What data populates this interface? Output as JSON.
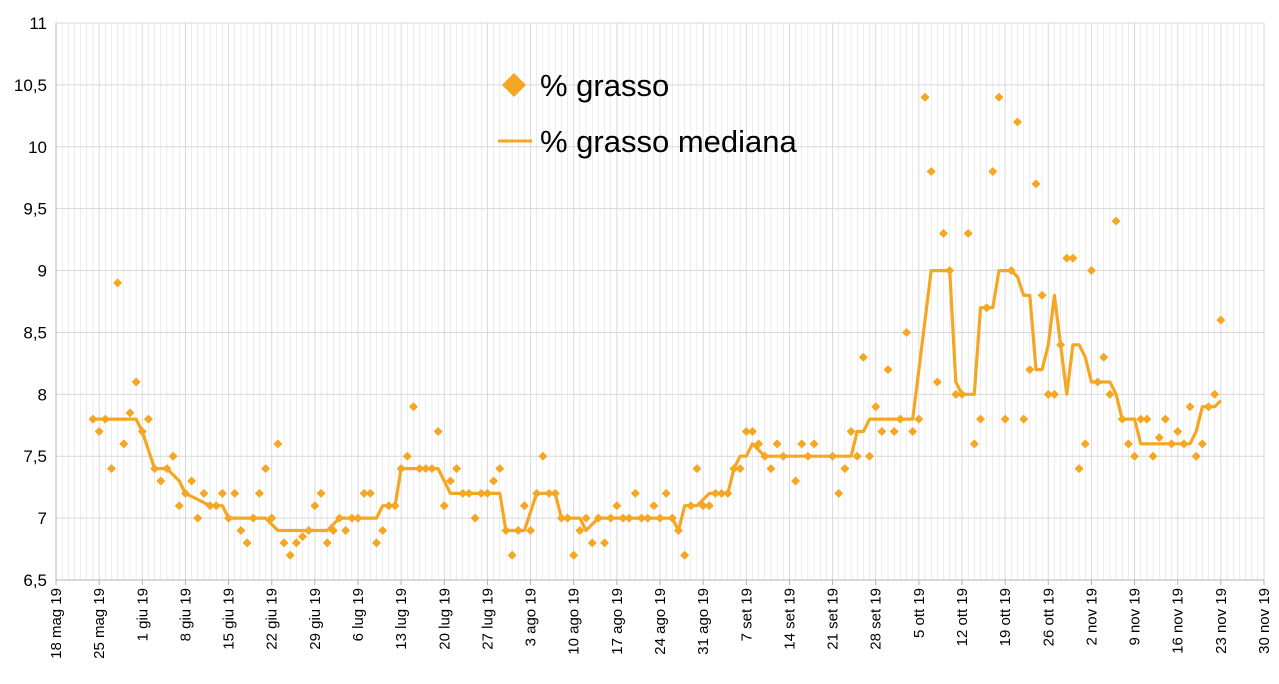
{
  "chart_data": {
    "type": "line",
    "title": "",
    "xlabel": "",
    "ylabel": "",
    "xlim": [
      "2019-05-18",
      "2019-11-30"
    ],
    "ylim": [
      6.5,
      11
    ],
    "grid": true,
    "legend": "top-center",
    "colors": {
      "series": "#F5A623",
      "grid": "#d9d9d9",
      "axis": "#b3b3b3"
    },
    "y_ticks": [
      "6,5",
      "7",
      "7,5",
      "8",
      "8,5",
      "9",
      "9,5",
      "10",
      "10,5",
      "11"
    ],
    "x_ticks": [
      "18 mag 19",
      "25 mag 19",
      "1 giu 19",
      "8 giu 19",
      "15 giu 19",
      "22 giu 19",
      "29 giu 19",
      "6 lug 19",
      "13 lug 19",
      "20 lug 19",
      "27 lug 19",
      "3 ago 19",
      "10 ago 19",
      "17 ago 19",
      "24 ago 19",
      "31 ago 19",
      "7 set 19",
      "14 set 19",
      "21 set 19",
      "28 set 19",
      "5 ott 19",
      "12 ott 19",
      "19 ott 19",
      "26 ott 19",
      "2 nov 19",
      "9 nov 19",
      "16 nov 19",
      "23 nov 19",
      "30 nov 19"
    ],
    "series": [
      {
        "name": "% grasso",
        "kind": "scatter",
        "marker": "diamond",
        "points": [
          [
            "2019-05-24",
            7.8
          ],
          [
            "2019-05-25",
            7.7
          ],
          [
            "2019-05-26",
            7.8
          ],
          [
            "2019-05-27",
            7.4
          ],
          [
            "2019-05-28",
            8.9
          ],
          [
            "2019-05-29",
            7.6
          ],
          [
            "2019-05-30",
            7.85
          ],
          [
            "2019-05-31",
            8.1
          ],
          [
            "2019-06-01",
            7.7
          ],
          [
            "2019-06-02",
            7.8
          ],
          [
            "2019-06-03",
            7.4
          ],
          [
            "2019-06-04",
            7.3
          ],
          [
            "2019-06-05",
            7.4
          ],
          [
            "2019-06-06",
            7.5
          ],
          [
            "2019-06-07",
            7.1
          ],
          [
            "2019-06-08",
            7.2
          ],
          [
            "2019-06-09",
            7.3
          ],
          [
            "2019-06-10",
            7.0
          ],
          [
            "2019-06-11",
            7.2
          ],
          [
            "2019-06-12",
            7.1
          ],
          [
            "2019-06-13",
            7.1
          ],
          [
            "2019-06-14",
            7.2
          ],
          [
            "2019-06-15",
            7.0
          ],
          [
            "2019-06-16",
            7.2
          ],
          [
            "2019-06-17",
            6.9
          ],
          [
            "2019-06-18",
            6.8
          ],
          [
            "2019-06-19",
            7.0
          ],
          [
            "2019-06-20",
            7.2
          ],
          [
            "2019-06-21",
            7.4
          ],
          [
            "2019-06-22",
            7.0
          ],
          [
            "2019-06-23",
            7.6
          ],
          [
            "2019-06-24",
            6.8
          ],
          [
            "2019-06-25",
            6.7
          ],
          [
            "2019-06-26",
            6.8
          ],
          [
            "2019-06-27",
            6.85
          ],
          [
            "2019-06-28",
            6.9
          ],
          [
            "2019-06-29",
            7.1
          ],
          [
            "2019-06-30",
            7.2
          ],
          [
            "2019-07-01",
            6.8
          ],
          [
            "2019-07-02",
            6.9
          ],
          [
            "2019-07-03",
            7.0
          ],
          [
            "2019-07-04",
            6.9
          ],
          [
            "2019-07-05",
            7.0
          ],
          [
            "2019-07-06",
            7.0
          ],
          [
            "2019-07-07",
            7.2
          ],
          [
            "2019-07-08",
            7.2
          ],
          [
            "2019-07-09",
            6.8
          ],
          [
            "2019-07-10",
            6.9
          ],
          [
            "2019-07-11",
            7.1
          ],
          [
            "2019-07-12",
            7.1
          ],
          [
            "2019-07-13",
            7.4
          ],
          [
            "2019-07-14",
            7.5
          ],
          [
            "2019-07-15",
            7.9
          ],
          [
            "2019-07-16",
            7.4
          ],
          [
            "2019-07-17",
            7.4
          ],
          [
            "2019-07-18",
            7.4
          ],
          [
            "2019-07-19",
            7.7
          ],
          [
            "2019-07-20",
            7.1
          ],
          [
            "2019-07-21",
            7.3
          ],
          [
            "2019-07-22",
            7.4
          ],
          [
            "2019-07-23",
            7.2
          ],
          [
            "2019-07-24",
            7.2
          ],
          [
            "2019-07-25",
            7.0
          ],
          [
            "2019-07-26",
            7.2
          ],
          [
            "2019-07-27",
            7.2
          ],
          [
            "2019-07-28",
            7.3
          ],
          [
            "2019-07-29",
            7.4
          ],
          [
            "2019-07-30",
            6.9
          ],
          [
            "2019-07-31",
            6.7
          ],
          [
            "2019-08-01",
            6.9
          ],
          [
            "2019-08-02",
            7.1
          ],
          [
            "2019-08-03",
            6.9
          ],
          [
            "2019-08-04",
            7.2
          ],
          [
            "2019-08-05",
            7.5
          ],
          [
            "2019-08-06",
            7.2
          ],
          [
            "2019-08-07",
            7.2
          ],
          [
            "2019-08-08",
            7.0
          ],
          [
            "2019-08-09",
            7.0
          ],
          [
            "2019-08-10",
            6.7
          ],
          [
            "2019-08-11",
            6.9
          ],
          [
            "2019-08-12",
            7.0
          ],
          [
            "2019-08-13",
            6.8
          ],
          [
            "2019-08-14",
            7.0
          ],
          [
            "2019-08-15",
            6.8
          ],
          [
            "2019-08-16",
            7.0
          ],
          [
            "2019-08-17",
            7.1
          ],
          [
            "2019-08-18",
            7.0
          ],
          [
            "2019-08-19",
            7.0
          ],
          [
            "2019-08-20",
            7.2
          ],
          [
            "2019-08-21",
            7.0
          ],
          [
            "2019-08-22",
            7.0
          ],
          [
            "2019-08-23",
            7.1
          ],
          [
            "2019-08-24",
            7.0
          ],
          [
            "2019-08-25",
            7.2
          ],
          [
            "2019-08-26",
            7.0
          ],
          [
            "2019-08-27",
            6.9
          ],
          [
            "2019-08-28",
            6.7
          ],
          [
            "2019-08-29",
            7.1
          ],
          [
            "2019-08-30",
            7.4
          ],
          [
            "2019-08-31",
            7.1
          ],
          [
            "2019-09-01",
            7.1
          ],
          [
            "2019-09-02",
            7.2
          ],
          [
            "2019-09-03",
            7.2
          ],
          [
            "2019-09-04",
            7.2
          ],
          [
            "2019-09-05",
            7.4
          ],
          [
            "2019-09-06",
            7.4
          ],
          [
            "2019-09-07",
            7.7
          ],
          [
            "2019-09-08",
            7.7
          ],
          [
            "2019-09-09",
            7.6
          ],
          [
            "2019-09-10",
            7.5
          ],
          [
            "2019-09-11",
            7.4
          ],
          [
            "2019-09-12",
            7.6
          ],
          [
            "2019-09-13",
            7.5
          ],
          [
            "2019-09-15",
            7.3
          ],
          [
            "2019-09-16",
            7.6
          ],
          [
            "2019-09-17",
            7.5
          ],
          [
            "2019-09-18",
            7.6
          ],
          [
            "2019-09-21",
            7.5
          ],
          [
            "2019-09-22",
            7.2
          ],
          [
            "2019-09-23",
            7.4
          ],
          [
            "2019-09-24",
            7.7
          ],
          [
            "2019-09-25",
            7.5
          ],
          [
            "2019-09-26",
            8.3
          ],
          [
            "2019-09-27",
            7.5
          ],
          [
            "2019-09-28",
            7.9
          ],
          [
            "2019-09-29",
            7.7
          ],
          [
            "2019-09-30",
            8.2
          ],
          [
            "2019-10-01",
            7.7
          ],
          [
            "2019-10-02",
            7.8
          ],
          [
            "2019-10-03",
            8.5
          ],
          [
            "2019-10-04",
            7.7
          ],
          [
            "2019-10-05",
            7.8
          ],
          [
            "2019-10-06",
            10.4
          ],
          [
            "2019-10-07",
            9.8
          ],
          [
            "2019-10-08",
            8.1
          ],
          [
            "2019-10-09",
            9.3
          ],
          [
            "2019-10-10",
            9.0
          ],
          [
            "2019-10-11",
            8.0
          ],
          [
            "2019-10-12",
            8.0
          ],
          [
            "2019-10-13",
            9.3
          ],
          [
            "2019-10-14",
            7.6
          ],
          [
            "2019-10-15",
            7.8
          ],
          [
            "2019-10-16",
            8.7
          ],
          [
            "2019-10-17",
            9.8
          ],
          [
            "2019-10-18",
            10.4
          ],
          [
            "2019-10-19",
            7.8
          ],
          [
            "2019-10-20",
            9.0
          ],
          [
            "2019-10-21",
            10.2
          ],
          [
            "2019-10-22",
            7.8
          ],
          [
            "2019-10-23",
            8.2
          ],
          [
            "2019-10-24",
            9.7
          ],
          [
            "2019-10-25",
            8.8
          ],
          [
            "2019-10-26",
            8.0
          ],
          [
            "2019-10-27",
            8.0
          ],
          [
            "2019-10-28",
            8.4
          ],
          [
            "2019-10-29",
            9.1
          ],
          [
            "2019-10-30",
            9.1
          ],
          [
            "2019-10-31",
            7.4
          ],
          [
            "2019-11-01",
            7.6
          ],
          [
            "2019-11-02",
            9.0
          ],
          [
            "2019-11-03",
            8.1
          ],
          [
            "2019-11-04",
            8.3
          ],
          [
            "2019-11-05",
            8.0
          ],
          [
            "2019-11-06",
            9.4
          ],
          [
            "2019-11-07",
            7.8
          ],
          [
            "2019-11-08",
            7.6
          ],
          [
            "2019-11-09",
            7.5
          ],
          [
            "2019-11-10",
            7.8
          ],
          [
            "2019-11-11",
            7.8
          ],
          [
            "2019-11-12",
            7.5
          ],
          [
            "2019-11-13",
            7.65
          ],
          [
            "2019-11-14",
            7.8
          ],
          [
            "2019-11-15",
            7.6
          ],
          [
            "2019-11-16",
            7.7
          ],
          [
            "2019-11-17",
            7.6
          ],
          [
            "2019-11-18",
            7.9
          ],
          [
            "2019-11-19",
            7.5
          ],
          [
            "2019-11-20",
            7.6
          ],
          [
            "2019-11-21",
            7.9
          ],
          [
            "2019-11-22",
            8.0
          ],
          [
            "2019-11-23",
            8.6
          ]
        ]
      },
      {
        "name": "% grasso mediana",
        "kind": "line",
        "points": [
          [
            "2019-05-24",
            7.8
          ],
          [
            "2019-05-31",
            7.8
          ],
          [
            "2019-06-01",
            7.7
          ],
          [
            "2019-06-03",
            7.4
          ],
          [
            "2019-06-05",
            7.4
          ],
          [
            "2019-06-07",
            7.3
          ],
          [
            "2019-06-08",
            7.2
          ],
          [
            "2019-06-10",
            7.15
          ],
          [
            "2019-06-12",
            7.1
          ],
          [
            "2019-06-14",
            7.1
          ],
          [
            "2019-06-15",
            7.0
          ],
          [
            "2019-06-19",
            7.0
          ],
          [
            "2019-06-21",
            7.0
          ],
          [
            "2019-06-23",
            6.9
          ],
          [
            "2019-06-28",
            6.9
          ],
          [
            "2019-06-30",
            6.9
          ],
          [
            "2019-07-01",
            6.9
          ],
          [
            "2019-07-03",
            7.0
          ],
          [
            "2019-07-09",
            7.0
          ],
          [
            "2019-07-10",
            7.1
          ],
          [
            "2019-07-12",
            7.1
          ],
          [
            "2019-07-13",
            7.4
          ],
          [
            "2019-07-19",
            7.4
          ],
          [
            "2019-07-20",
            7.3
          ],
          [
            "2019-07-21",
            7.2
          ],
          [
            "2019-07-25",
            7.2
          ],
          [
            "2019-07-27",
            7.2
          ],
          [
            "2019-07-29",
            7.2
          ],
          [
            "2019-07-30",
            6.9
          ],
          [
            "2019-08-02",
            6.9
          ],
          [
            "2019-08-04",
            7.2
          ],
          [
            "2019-08-07",
            7.2
          ],
          [
            "2019-08-08",
            7.0
          ],
          [
            "2019-08-11",
            7.0
          ],
          [
            "2019-08-12",
            6.9
          ],
          [
            "2019-08-14",
            7.0
          ],
          [
            "2019-08-26",
            7.0
          ],
          [
            "2019-08-27",
            6.9
          ],
          [
            "2019-08-28",
            7.1
          ],
          [
            "2019-08-30",
            7.1
          ],
          [
            "2019-09-01",
            7.2
          ],
          [
            "2019-09-04",
            7.2
          ],
          [
            "2019-09-05",
            7.4
          ],
          [
            "2019-09-06",
            7.5
          ],
          [
            "2019-09-07",
            7.5
          ],
          [
            "2019-09-08",
            7.6
          ],
          [
            "2019-09-10",
            7.5
          ],
          [
            "2019-09-24",
            7.5
          ],
          [
            "2019-09-25",
            7.7
          ],
          [
            "2019-09-26",
            7.7
          ],
          [
            "2019-09-27",
            7.8
          ],
          [
            "2019-10-04",
            7.8
          ],
          [
            "2019-10-05",
            8.2
          ],
          [
            "2019-10-07",
            9.0
          ],
          [
            "2019-10-10",
            9.0
          ],
          [
            "2019-10-11",
            8.1
          ],
          [
            "2019-10-12",
            8.0
          ],
          [
            "2019-10-14",
            8.0
          ],
          [
            "2019-10-15",
            8.7
          ],
          [
            "2019-10-17",
            8.7
          ],
          [
            "2019-10-18",
            9.0
          ],
          [
            "2019-10-20",
            9.0
          ],
          [
            "2019-10-21",
            8.95
          ],
          [
            "2019-10-22",
            8.8
          ],
          [
            "2019-10-23",
            8.8
          ],
          [
            "2019-10-24",
            8.2
          ],
          [
            "2019-10-25",
            8.2
          ],
          [
            "2019-10-26",
            8.4
          ],
          [
            "2019-10-27",
            8.8
          ],
          [
            "2019-10-28",
            8.4
          ],
          [
            "2019-10-29",
            8.0
          ],
          [
            "2019-10-30",
            8.4
          ],
          [
            "2019-10-31",
            8.4
          ],
          [
            "2019-11-01",
            8.3
          ],
          [
            "2019-11-02",
            8.1
          ],
          [
            "2019-11-04",
            8.1
          ],
          [
            "2019-11-05",
            8.1
          ],
          [
            "2019-11-06",
            8.0
          ],
          [
            "2019-11-07",
            7.8
          ],
          [
            "2019-11-09",
            7.8
          ],
          [
            "2019-11-10",
            7.6
          ],
          [
            "2019-11-16",
            7.6
          ],
          [
            "2019-11-18",
            7.6
          ],
          [
            "2019-11-19",
            7.7
          ],
          [
            "2019-11-20",
            7.9
          ],
          [
            "2019-11-22",
            7.9
          ],
          [
            "2019-11-23",
            7.95
          ]
        ]
      }
    ]
  }
}
